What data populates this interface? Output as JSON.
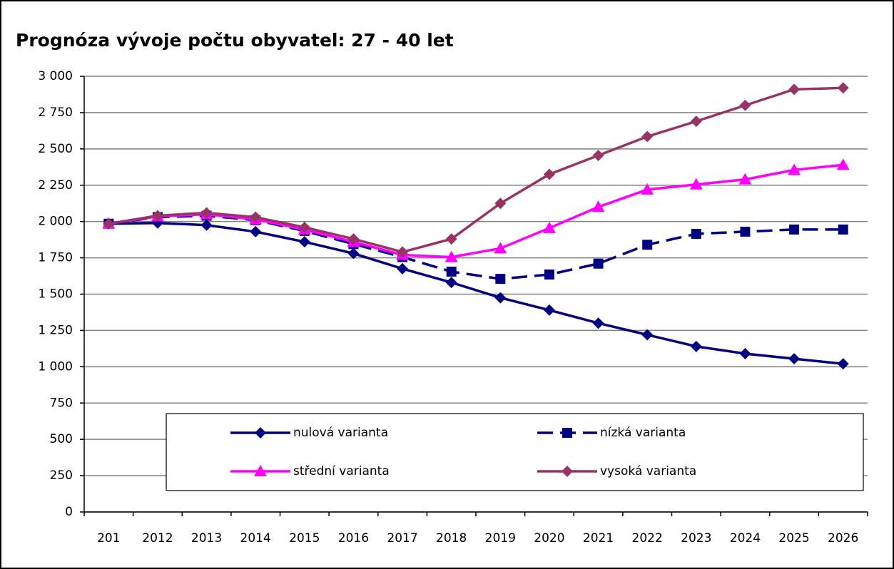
{
  "chart_data": {
    "type": "line",
    "title": "Prognóza vývoje počtu obyvatel: 27 - 40 let",
    "categories": [
      "201",
      "2012",
      "2013",
      "2014",
      "2015",
      "2016",
      "2017",
      "2018",
      "2019",
      "2020",
      "2021",
      "2022",
      "2023",
      "2024",
      "2025",
      "2026"
    ],
    "series": [
      {
        "name": "nulová varianta",
        "color": "#000080",
        "marker": "diamond",
        "dashed": false,
        "values": [
          1985,
          1990,
          1975,
          1930,
          1860,
          1780,
          1675,
          1580,
          1475,
          1390,
          1300,
          1220,
          1140,
          1090,
          1055,
          1020
        ]
      },
      {
        "name": "nízká varianta",
        "color": "#000080",
        "marker": "square",
        "dashed": true,
        "values": [
          1985,
          2030,
          2040,
          2010,
          1935,
          1845,
          1755,
          1655,
          1605,
          1635,
          1710,
          1840,
          1915,
          1930,
          1945,
          1945
        ]
      },
      {
        "name": "střední varianta",
        "color": "#ff00ff",
        "marker": "triangle",
        "dashed": false,
        "values": [
          1985,
          2035,
          2050,
          2015,
          1945,
          1860,
          1770,
          1755,
          1815,
          1955,
          2100,
          2220,
          2255,
          2290,
          2355,
          2390
        ]
      },
      {
        "name": "vysoká varianta",
        "color": "#993366",
        "marker": "diamond",
        "dashed": false,
        "values": [
          1985,
          2040,
          2060,
          2030,
          1960,
          1880,
          1790,
          1880,
          2125,
          2325,
          2455,
          2585,
          2690,
          2800,
          2910,
          2920
        ]
      }
    ],
    "ylim": [
      0,
      3000
    ],
    "yticks": [
      0,
      250,
      500,
      750,
      {
        "value": 1000,
        "label": "1 000"
      },
      {
        "value": 1250,
        "label": "1 250"
      },
      {
        "value": 1500,
        "label": "1 500"
      },
      {
        "value": 1750,
        "label": "1 750"
      },
      {
        "value": 2000,
        "label": "2 000"
      },
      {
        "value": 2250,
        "label": "2 250"
      },
      {
        "value": 2500,
        "label": "2 500"
      },
      {
        "value": 2750,
        "label": "2 750"
      },
      {
        "value": 3000,
        "label": "3 000"
      }
    ],
    "grid": true,
    "legend": "inside-bottom"
  }
}
